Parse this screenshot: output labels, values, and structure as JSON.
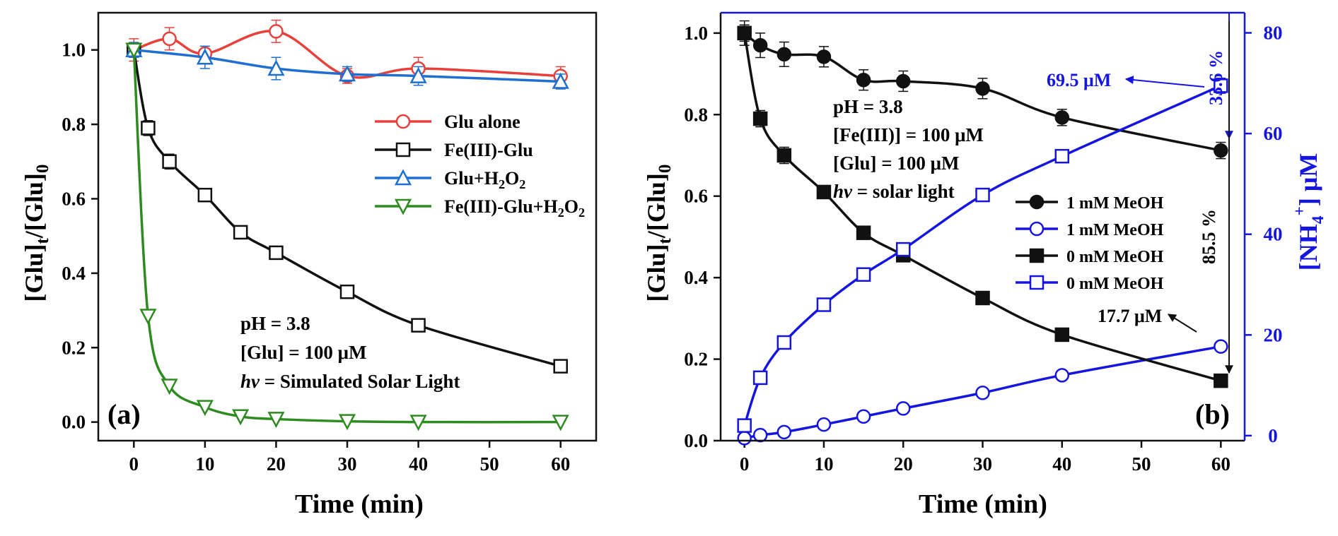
{
  "chart_data": [
    {
      "panel_label": "(a)",
      "type": "line",
      "xlabel": "Time (min)",
      "ylabel": "[Glu]t/[Glu]0",
      "xlim": [
        -5,
        65
      ],
      "ylim": [
        -0.05,
        1.1
      ],
      "xticks": [
        0,
        10,
        20,
        30,
        40,
        50,
        60
      ],
      "yticks": [
        0.0,
        0.2,
        0.4,
        0.6,
        0.8,
        1.0
      ],
      "xtick_labels": [
        "0",
        "10",
        "20",
        "30",
        "40",
        "50",
        "60"
      ],
      "ytick_labels": [
        "0.0",
        "0.2",
        "0.4",
        "0.6",
        "0.8",
        "1.0"
      ],
      "legend_position": "upper-right",
      "annotations": [
        "pH = 3.8",
        "[Glu] = 100 μM",
        "hv = Simulated Solar Light"
      ],
      "series": [
        {
          "name": "Glu alone",
          "color": "#e8413c",
          "marker": "circle",
          "x": [
            0,
            5,
            10,
            20,
            30,
            40,
            60
          ],
          "y": [
            1.0,
            1.03,
            0.99,
            1.05,
            0.93,
            0.95,
            0.93
          ],
          "err": [
            0.03,
            0.03,
            0.02,
            0.03,
            0.02,
            0.03,
            0.025
          ]
        },
        {
          "name": "Fe(III)-Glu",
          "color": "#111111",
          "marker": "square",
          "x": [
            0,
            2,
            5,
            10,
            15,
            20,
            30,
            40,
            60
          ],
          "y": [
            1.0,
            0.79,
            0.7,
            0.61,
            0.51,
            0.455,
            0.35,
            0.26,
            0.15
          ],
          "err": [
            0.02,
            0.02,
            0.02,
            0.015,
            0.01,
            0.01,
            0.01,
            0.01,
            0.01
          ]
        },
        {
          "name": "Glu+H2O2",
          "color": "#1f6fd1",
          "marker": "triangle-up",
          "x": [
            0,
            10,
            20,
            30,
            40,
            60
          ],
          "y": [
            1.0,
            0.98,
            0.95,
            0.935,
            0.93,
            0.915
          ],
          "err": [
            0.02,
            0.03,
            0.03,
            0.02,
            0.025,
            0.02
          ]
        },
        {
          "name": "Fe(III)-Glu+H2O2",
          "color": "#2e8b1f",
          "marker": "triangle-down",
          "x": [
            0,
            2,
            5,
            10,
            15,
            20,
            30,
            40,
            60
          ],
          "y": [
            1.0,
            0.285,
            0.097,
            0.04,
            0.015,
            0.008,
            0.002,
            0.0,
            0.0
          ],
          "err": [
            0,
            0,
            0,
            0,
            0,
            0,
            0,
            0,
            0
          ]
        }
      ]
    },
    {
      "panel_label": "(b)",
      "type": "line",
      "xlabel": "Time (min)",
      "ylabel": "[Glu]t/[Glu]0",
      "y2label": "[NH4+] μM",
      "xlim": [
        -3,
        63
      ],
      "ylim": [
        0.0,
        1.05
      ],
      "y2lim": [
        -1,
        84
      ],
      "xticks": [
        0,
        10,
        20,
        30,
        40,
        50,
        60
      ],
      "yticks": [
        0.0,
        0.2,
        0.4,
        0.6,
        0.8,
        1.0
      ],
      "y2ticks": [
        0,
        20,
        40,
        60,
        80
      ],
      "xtick_labels": [
        "0",
        "10",
        "20",
        "30",
        "40",
        "50",
        "60"
      ],
      "ytick_labels": [
        "0.0",
        "0.2",
        "0.4",
        "0.6",
        "0.8",
        "1.0"
      ],
      "y2tick_labels": [
        "0",
        "20",
        "40",
        "60",
        "80"
      ],
      "legend_position": "center-right",
      "annotations": [
        "pH = 3.8",
        "[Fe(III)] = 100 μM",
        "[Glu] = 100 μM",
        "hv = solar light",
        "69.5 μM",
        "33.6 %",
        "85.5 %",
        "17.7 μM"
      ],
      "series": [
        {
          "name": "1 mM MeOH",
          "axis": "left",
          "color": "#111111",
          "marker": "circle-filled",
          "x": [
            0,
            2,
            5,
            10,
            15,
            20,
            30,
            40,
            60
          ],
          "y": [
            1.0,
            0.97,
            0.948,
            0.942,
            0.885,
            0.882,
            0.864,
            0.793,
            0.712
          ],
          "err": [
            0.03,
            0.03,
            0.03,
            0.025,
            0.025,
            0.025,
            0.025,
            0.02,
            0.02
          ]
        },
        {
          "name": "1 mM MeOH",
          "axis": "right",
          "color": "#1515e0",
          "marker": "circle-open",
          "x": [
            0,
            2,
            5,
            10,
            15,
            20,
            30,
            40,
            60
          ],
          "y": [
            -0.5,
            0.1,
            0.7,
            2.2,
            3.8,
            5.4,
            8.5,
            12.0,
            17.7
          ],
          "err": [
            0,
            0,
            0,
            0,
            0,
            0,
            0,
            0,
            0
          ]
        },
        {
          "name": "0 mM MeOH",
          "axis": "left",
          "color": "#111111",
          "marker": "square-filled",
          "x": [
            0,
            2,
            5,
            10,
            15,
            20,
            30,
            40,
            60
          ],
          "y": [
            1.0,
            0.79,
            0.7,
            0.61,
            0.51,
            0.455,
            0.35,
            0.26,
            0.147
          ],
          "err": [
            0.02,
            0.02,
            0.02,
            0.015,
            0.01,
            0.01,
            0.01,
            0.01,
            0.01
          ]
        },
        {
          "name": "0 mM MeOH",
          "axis": "right",
          "color": "#1515e0",
          "marker": "square-open",
          "x": [
            0,
            2,
            5,
            10,
            15,
            20,
            30,
            40,
            60
          ],
          "y": [
            2.0,
            11.5,
            18.5,
            26.0,
            32.0,
            37.0,
            47.8,
            55.5,
            69.5
          ],
          "err": [
            0,
            0,
            0,
            0,
            0,
            0,
            0,
            1.2,
            1.5
          ]
        }
      ]
    }
  ]
}
